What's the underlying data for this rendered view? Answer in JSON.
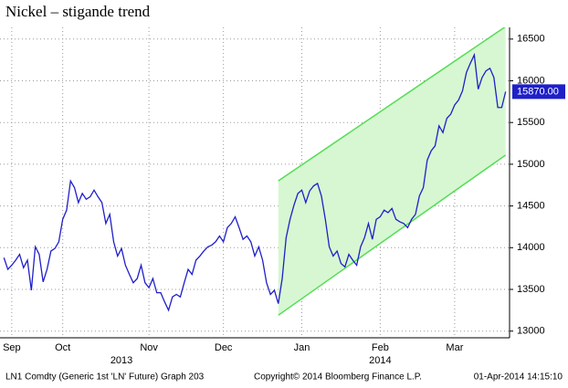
{
  "chart_data": {
    "type": "line",
    "title": "Nickel – stigande trend",
    "series": [
      {
        "name": "LN1 Comdty",
        "color": "#1f1fc8",
        "values": [
          13880,
          13740,
          13790,
          13850,
          13920,
          13760,
          13850,
          13490,
          14010,
          13920,
          13590,
          13740,
          13960,
          13990,
          14070,
          14340,
          14450,
          14800,
          14720,
          14540,
          14650,
          14580,
          14610,
          14690,
          14610,
          14540,
          14290,
          14400,
          14070,
          13900,
          13990,
          13790,
          13680,
          13580,
          13630,
          13790,
          13580,
          13520,
          13630,
          13460,
          13460,
          13350,
          13250,
          13410,
          13440,
          13410,
          13580,
          13740,
          13680,
          13850,
          13900,
          13960,
          14010,
          14030,
          14070,
          14140,
          14070,
          14240,
          14290,
          14370,
          14240,
          14100,
          14140,
          14070,
          13900,
          14010,
          13850,
          13580,
          13440,
          13490,
          13330,
          13630,
          14120,
          14340,
          14510,
          14650,
          14690,
          14540,
          14680,
          14740,
          14770,
          14620,
          14340,
          14010,
          13900,
          13960,
          13810,
          13770,
          13920,
          13850,
          13790,
          14010,
          14120,
          14290,
          14100,
          14340,
          14370,
          14450,
          14420,
          14470,
          14340,
          14310,
          14290,
          14240,
          14340,
          14400,
          14620,
          14720,
          15050,
          15160,
          15220,
          15460,
          15380,
          15550,
          15600,
          15710,
          15770,
          15880,
          16100,
          16210,
          16310,
          15900,
          16040,
          16120,
          16150,
          16040,
          15680,
          15680,
          15870
        ]
      }
    ],
    "last_value_label": {
      "value": 15870,
      "label": "15870.00"
    },
    "trend_channel": {
      "x": [
        70,
        128
      ],
      "upper": [
        14800,
        16650
      ],
      "lower": [
        13190,
        15110
      ],
      "color": "#55dd55",
      "fill": "#d6f7d2"
    },
    "xlim": [
      -1,
      129
    ],
    "xticks": [
      {
        "value": 2,
        "label": "Sep"
      },
      {
        "value": 15,
        "label": "Oct"
      },
      {
        "value": 37,
        "label": "Nov"
      },
      {
        "value": 56,
        "label": "Dec"
      },
      {
        "value": 76,
        "label": "Jan"
      },
      {
        "value": 96,
        "label": "Feb"
      },
      {
        "value": 115,
        "label": "Mar"
      }
    ],
    "year_ticks": [
      {
        "value": 30,
        "label": "2013"
      },
      {
        "value": 96,
        "label": "2014"
      }
    ],
    "ylim": [
      12920,
      16640
    ],
    "yticks": [
      13000,
      13500,
      14000,
      14500,
      15000,
      15500,
      16000,
      16500
    ],
    "grid": true,
    "footer": [
      "LN1 Comdty (Generic 1st 'LN' Future) Graph 203",
      "Copyright© 2014 Bloomberg Finance L.P.",
      "01-Apr-2014 14:15:10"
    ]
  }
}
